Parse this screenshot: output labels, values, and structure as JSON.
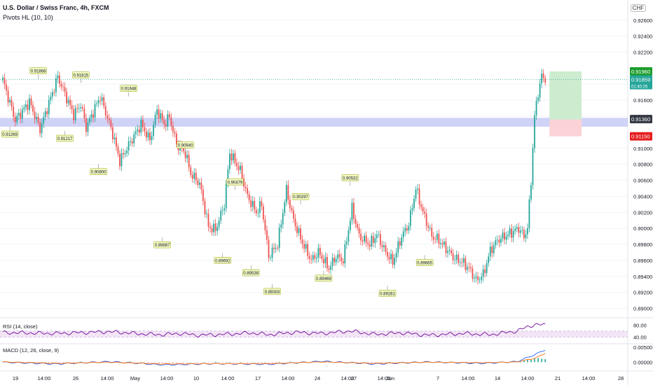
{
  "header": {
    "title": "U.S. Dollar / Swiss Franc, 4h, FXCM",
    "indicator": "Pivots HL (10, 10)",
    "currency": "CHF"
  },
  "colors": {
    "up": "#26a69a",
    "down": "#ef5350",
    "zone": "#c7cbf5",
    "target_box": "#cdeccf",
    "stop_box": "#fbd3d6",
    "pivot_label_bg": "#f2f9c4",
    "rsi_line": "#7b1fa2",
    "rsi_band": "#f3e5f5",
    "macd_line": "#2962ff",
    "signal_line": "#ff6d00",
    "price_tag_current": "#26a69a",
    "price_tag_target": "#1e9e2e",
    "price_tag_stop": "#e41f1f",
    "price_tag_zone": "#363a45"
  },
  "chart_data": {
    "type": "candlestick",
    "y_axis_labels": [
      "0.92600",
      "0.92400",
      "0.92200",
      "0.91800",
      "0.91600",
      "0.91400",
      "0.91000",
      "0.90800",
      "0.90600",
      "0.90400",
      "0.90200",
      "0.90000",
      "0.89800",
      "0.89600",
      "0.89400",
      "0.89200",
      "0.89000"
    ],
    "ylim": [
      0.889,
      0.928
    ],
    "x_axis_labels": [
      "19",
      "14:00",
      "26",
      "14:00",
      "May",
      "14:00",
      "10",
      "14:00",
      "17",
      "14:00",
      "24",
      "14:00",
      "27",
      "14:00",
      "Jun",
      "7",
      "14:00",
      "14",
      "14:00",
      "21",
      "14:00",
      "28"
    ],
    "close_path": [
      [
        0,
        0.9185
      ],
      [
        7,
        0.9135
      ],
      [
        15,
        0.9158
      ],
      [
        21,
        0.9124
      ],
      [
        31,
        0.9189
      ],
      [
        40,
        0.9142
      ],
      [
        44,
        0.9155
      ],
      [
        47,
        0.9126
      ],
      [
        55,
        0.9165
      ],
      [
        62,
        0.9118
      ],
      [
        66,
        0.9084
      ],
      [
        72,
        0.9108
      ],
      [
        78,
        0.913
      ],
      [
        83,
        0.911
      ],
      [
        87,
        0.9148
      ],
      [
        91,
        0.913
      ],
      [
        94,
        0.9139
      ],
      [
        98,
        0.9105
      ],
      [
        103,
        0.9094
      ],
      [
        106,
        0.9068
      ],
      [
        111,
        0.9056
      ],
      [
        116,
        0.9002
      ],
      [
        120,
        0.8998
      ],
      [
        125,
        0.903
      ],
      [
        128,
        0.9094
      ],
      [
        134,
        0.9072
      ],
      [
        138,
        0.904
      ],
      [
        143,
        0.902
      ],
      [
        146,
        0.903
      ],
      [
        150,
        0.8965
      ],
      [
        155,
        0.898
      ],
      [
        160,
        0.9048
      ],
      [
        164,
        0.901
      ],
      [
        169,
        0.8982
      ],
      [
        174,
        0.896
      ],
      [
        178,
        0.897
      ],
      [
        184,
        0.895
      ],
      [
        188,
        0.8965
      ],
      [
        192,
        0.896
      ],
      [
        197,
        0.9025
      ],
      [
        201,
        0.899
      ],
      [
        207,
        0.898
      ],
      [
        211,
        0.8992
      ],
      [
        216,
        0.897
      ],
      [
        220,
        0.8958
      ],
      [
        225,
        0.899
      ],
      [
        229,
        0.9005
      ],
      [
        233,
        0.905
      ],
      [
        237,
        0.902
      ],
      [
        242,
        0.899
      ],
      [
        246,
        0.8985
      ],
      [
        250,
        0.8975
      ],
      [
        255,
        0.8962
      ],
      [
        259,
        0.8958
      ],
      [
        263,
        0.895
      ],
      [
        267,
        0.8935
      ],
      [
        271,
        0.8942
      ],
      [
        275,
        0.8972
      ],
      [
        279,
        0.8985
      ],
      [
        283,
        0.899
      ],
      [
        287,
        0.8995
      ],
      [
        291,
        0.9
      ],
      [
        294,
        0.899
      ],
      [
        296,
        0.9
      ],
      [
        298,
        0.906
      ],
      [
        300,
        0.914
      ],
      [
        302,
        0.917
      ],
      [
        304,
        0.919
      ],
      [
        306,
        0.9186
      ]
    ],
    "pivot_labels": [
      {
        "text": "0.91868",
        "type": "high",
        "bar": 20,
        "price": 0.91868
      },
      {
        "text": "0.91815",
        "type": "high",
        "bar": 44,
        "price": 0.91815
      },
      {
        "text": "0.91648",
        "type": "high",
        "bar": 71,
        "price": 0.91648
      },
      {
        "text": "0.91269",
        "type": "low",
        "bar": 4,
        "price": 0.91269
      },
      {
        "text": "0.91217",
        "type": "low",
        "bar": 35,
        "price": 0.91217
      },
      {
        "text": "0.90800",
        "type": "low",
        "bar": 54,
        "price": 0.908
      },
      {
        "text": "0.90940",
        "type": "high",
        "bar": 103,
        "price": 0.9094
      },
      {
        "text": "0.89887",
        "type": "low",
        "bar": 90,
        "price": 0.89887
      },
      {
        "text": "0.90479",
        "type": "high",
        "bar": 131,
        "price": 0.90479
      },
      {
        "text": "0.89692",
        "type": "low",
        "bar": 124,
        "price": 0.89692
      },
      {
        "text": "0.89538",
        "type": "low",
        "bar": 140,
        "price": 0.89538
      },
      {
        "text": "0.89303",
        "type": "low",
        "bar": 152,
        "price": 0.89303
      },
      {
        "text": "0.90297",
        "type": "high",
        "bar": 168,
        "price": 0.90297
      },
      {
        "text": "0.89469",
        "type": "low",
        "bar": 181,
        "price": 0.89469
      },
      {
        "text": "0.90532",
        "type": "high",
        "bar": 196,
        "price": 0.90532
      },
      {
        "text": "0.89281",
        "type": "low",
        "bar": 217,
        "price": 0.89281
      },
      {
        "text": "0.89665",
        "type": "low",
        "bar": 238,
        "price": 0.89665
      }
    ],
    "zone": {
      "low": 0.9127,
      "high": 0.9138
    },
    "position": {
      "entry": 0.9136,
      "target": 0.9196,
      "stop": 0.9115
    },
    "price_tags": {
      "target": "0.91960",
      "current": "0.91859",
      "countdown": "01:40:25",
      "zone": "0.91360",
      "stop": "0.91150"
    },
    "current_price": 0.91859,
    "rsi": {
      "label": "RSI (14, close)",
      "axis_labels": [
        "80.00",
        "40.00"
      ],
      "band": [
        40,
        60
      ],
      "ylim": [
        20,
        95
      ],
      "path": [
        [
          0,
          55
        ],
        [
          30,
          52
        ],
        [
          60,
          58
        ],
        [
          80,
          50
        ],
        [
          90,
          48
        ],
        [
          100,
          52
        ],
        [
          110,
          46
        ],
        [
          125,
          49
        ],
        [
          140,
          54
        ],
        [
          150,
          48
        ],
        [
          165,
          56
        ],
        [
          180,
          52
        ],
        [
          196,
          60
        ],
        [
          210,
          49
        ],
        [
          225,
          54
        ],
        [
          240,
          46
        ],
        [
          260,
          52
        ],
        [
          275,
          48
        ],
        [
          290,
          60
        ],
        [
          296,
          74
        ],
        [
          300,
          82
        ],
        [
          306,
          80
        ]
      ]
    },
    "macd": {
      "label": "MACD (12, 26, close, 9)",
      "axis_labels": [
        "0.00500",
        "0.00000"
      ],
      "ylim": [
        -0.0025,
        0.006
      ],
      "macd_path": [
        [
          0,
          0.0
        ],
        [
          30,
          -0.0006
        ],
        [
          60,
          0.0002
        ],
        [
          90,
          -0.0009
        ],
        [
          120,
          -0.0005
        ],
        [
          150,
          -0.0007
        ],
        [
          180,
          0.0003
        ],
        [
          210,
          -0.0006
        ],
        [
          240,
          0.0001
        ],
        [
          270,
          -0.0004
        ],
        [
          290,
          0.0002
        ],
        [
          300,
          0.0025
        ],
        [
          306,
          0.0042
        ]
      ],
      "signal_path": [
        [
          0,
          0.0001
        ],
        [
          30,
          -0.0004
        ],
        [
          60,
          0.0
        ],
        [
          90,
          -0.0006
        ],
        [
          120,
          -0.0005
        ],
        [
          150,
          -0.0005
        ],
        [
          180,
          0.0001
        ],
        [
          210,
          -0.0004
        ],
        [
          240,
          0.0
        ],
        [
          270,
          -0.0002
        ],
        [
          290,
          0.0001
        ],
        [
          300,
          0.0013
        ],
        [
          306,
          0.003
        ]
      ]
    }
  }
}
